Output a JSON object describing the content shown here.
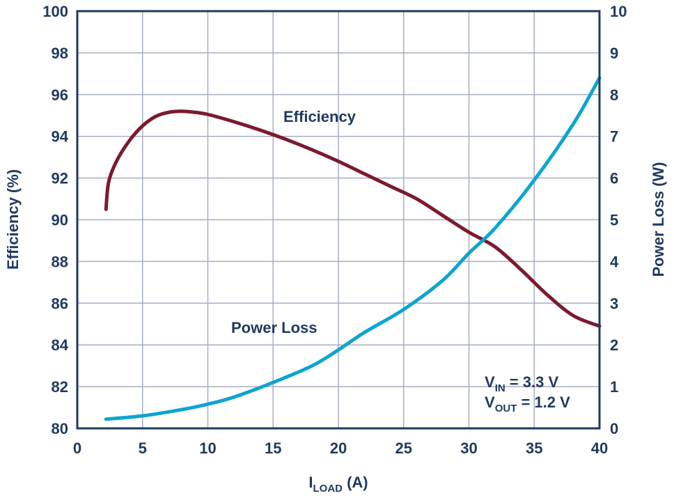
{
  "chart_data": {
    "type": "line",
    "x_axis": {
      "label_main": "I",
      "label_sub": "LOAD",
      "label_unit": " (A)",
      "range": [
        0,
        40
      ],
      "ticks": [
        0,
        5,
        10,
        15,
        20,
        25,
        30,
        35,
        40
      ]
    },
    "y_left_axis": {
      "label": "Efficiency (%)",
      "range": [
        80,
        100
      ],
      "ticks": [
        80,
        82,
        84,
        86,
        88,
        90,
        92,
        94,
        96,
        98,
        100
      ]
    },
    "y_right_axis": {
      "label": "Power Loss (W)",
      "range": [
        0,
        10
      ],
      "ticks": [
        0,
        1,
        2,
        3,
        4,
        5,
        6,
        7,
        8,
        9,
        10
      ]
    },
    "grid": true,
    "series": [
      {
        "name": "Efficiency",
        "axis": "left",
        "color": "#7b1a2e",
        "x": [
          2.2,
          2.4,
          3,
          4,
          5,
          6,
          7,
          8,
          9,
          10,
          12,
          14,
          16,
          18,
          20,
          22,
          24,
          26,
          28,
          30,
          32,
          34,
          36,
          38,
          40
        ],
        "y": [
          90.5,
          91.8,
          92.8,
          93.8,
          94.5,
          94.95,
          95.15,
          95.2,
          95.15,
          95.05,
          94.7,
          94.3,
          93.85,
          93.35,
          92.8,
          92.2,
          91.6,
          91.0,
          90.2,
          89.4,
          88.7,
          87.6,
          86.4,
          85.4,
          84.9
        ]
      },
      {
        "name": "Power Loss",
        "axis": "right",
        "color": "#0ea5cf",
        "x": [
          2.2,
          5,
          8,
          10,
          12,
          15,
          18,
          20,
          22,
          25,
          28,
          30,
          32,
          35,
          38,
          40
        ],
        "y": [
          0.22,
          0.3,
          0.45,
          0.58,
          0.75,
          1.1,
          1.5,
          1.88,
          2.3,
          2.85,
          3.55,
          4.2,
          4.8,
          5.95,
          7.3,
          8.4
        ]
      }
    ],
    "annotations": {
      "vin_main": "V",
      "vin_sub": "IN",
      "vin_value": " = 3.3 V",
      "vout_main": "V",
      "vout_sub": "OUT",
      "vout_value": " = 1.2 V"
    }
  }
}
